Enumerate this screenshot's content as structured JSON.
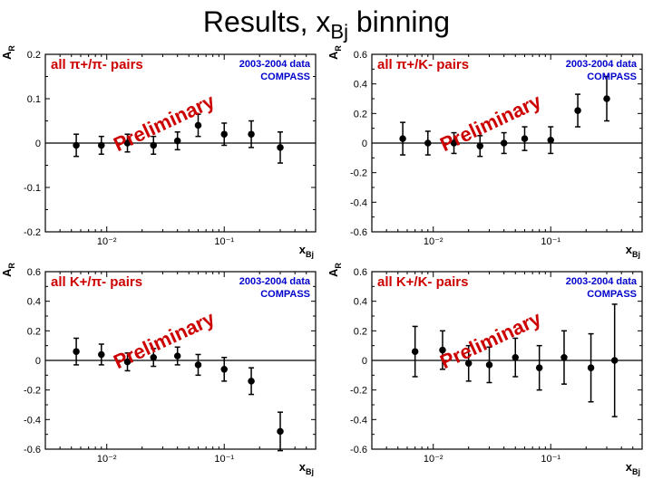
{
  "page_title_prefix": "Results, x",
  "page_title_sub": "Bj",
  "page_title_suffix": " binning",
  "common": {
    "ylabel": "A_RS",
    "xlabel_html": "x_Bj",
    "data_label_line1": "2003-2004 data",
    "data_label_line2": "COMPASS",
    "preliminary": "Preliminary",
    "preliminary_color": "#cc0000",
    "anno_color": "#0000cc",
    "axis_color": "#000000",
    "background": "#ffffff",
    "marker": "circle",
    "marker_radius": 3,
    "xscale": "log",
    "xlim": [
      0.003,
      0.6
    ],
    "xtick_majors": [
      0.01,
      0.1
    ],
    "xtick_labels": [
      "10⁻²",
      "10⁻¹"
    ],
    "xtick_minors": [
      0.003,
      0.004,
      0.005,
      0.006,
      0.007,
      0.008,
      0.009,
      0.02,
      0.03,
      0.04,
      0.05,
      0.06,
      0.07,
      0.08,
      0.09,
      0.2,
      0.3,
      0.4,
      0.5
    ]
  },
  "panels": [
    {
      "label": "all π+/π- pairs",
      "ylim": [
        -0.2,
        0.2
      ],
      "yticks": [
        -0.2,
        -0.1,
        0,
        0.1,
        0.2
      ],
      "ytick_labels": [
        "-0.2",
        "-0.1",
        "0",
        "0.1",
        "0.2"
      ],
      "points": [
        {
          "x": 0.0055,
          "y": -0.005,
          "err": 0.025
        },
        {
          "x": 0.009,
          "y": -0.005,
          "err": 0.02
        },
        {
          "x": 0.015,
          "y": 0.0,
          "err": 0.02
        },
        {
          "x": 0.025,
          "y": -0.005,
          "err": 0.02
        },
        {
          "x": 0.04,
          "y": 0.005,
          "err": 0.02
        },
        {
          "x": 0.06,
          "y": 0.04,
          "err": 0.025
        },
        {
          "x": 0.1,
          "y": 0.02,
          "err": 0.025
        },
        {
          "x": 0.17,
          "y": 0.02,
          "err": 0.03
        },
        {
          "x": 0.3,
          "y": -0.01,
          "err": 0.035
        }
      ]
    },
    {
      "label": "all π+/K- pairs",
      "ylim": [
        -0.6,
        0.6
      ],
      "yticks": [
        -0.6,
        -0.4,
        -0.2,
        0,
        0.2,
        0.4,
        0.6
      ],
      "ytick_labels": [
        "-0.6",
        "-0.4",
        "-0.2",
        "0",
        "0.2",
        "0.4",
        "0.6"
      ],
      "points": [
        {
          "x": 0.0055,
          "y": 0.03,
          "err": 0.11
        },
        {
          "x": 0.009,
          "y": 0.0,
          "err": 0.08
        },
        {
          "x": 0.015,
          "y": 0.0,
          "err": 0.07
        },
        {
          "x": 0.025,
          "y": -0.02,
          "err": 0.07
        },
        {
          "x": 0.04,
          "y": 0.0,
          "err": 0.07
        },
        {
          "x": 0.06,
          "y": 0.03,
          "err": 0.08
        },
        {
          "x": 0.1,
          "y": 0.02,
          "err": 0.09
        },
        {
          "x": 0.17,
          "y": 0.22,
          "err": 0.11
        },
        {
          "x": 0.3,
          "y": 0.3,
          "err": 0.15
        }
      ]
    },
    {
      "label": "all K+/π- pairs",
      "ylim": [
        -0.6,
        0.6
      ],
      "yticks": [
        -0.6,
        -0.4,
        -0.2,
        0,
        0.2,
        0.4,
        0.6
      ],
      "ytick_labels": [
        "-0.6",
        "-0.4",
        "-0.2",
        "0",
        "0.2",
        "0.4",
        "0.6"
      ],
      "points": [
        {
          "x": 0.0055,
          "y": 0.06,
          "err": 0.09
        },
        {
          "x": 0.009,
          "y": 0.04,
          "err": 0.07
        },
        {
          "x": 0.015,
          "y": -0.01,
          "err": 0.06
        },
        {
          "x": 0.025,
          "y": 0.02,
          "err": 0.06
        },
        {
          "x": 0.04,
          "y": 0.03,
          "err": 0.06
        },
        {
          "x": 0.06,
          "y": -0.03,
          "err": 0.07
        },
        {
          "x": 0.1,
          "y": -0.06,
          "err": 0.08
        },
        {
          "x": 0.17,
          "y": -0.14,
          "err": 0.09
        },
        {
          "x": 0.3,
          "y": -0.48,
          "err": 0.13
        }
      ]
    },
    {
      "label": "all K+/K- pairs",
      "ylim": [
        -0.6,
        0.6
      ],
      "yticks": [
        -0.6,
        -0.4,
        -0.2,
        0,
        0.2,
        0.4,
        0.6
      ],
      "ytick_labels": [
        "-0.6",
        "-0.4",
        "-0.2",
        "0",
        "0.2",
        "0.4",
        "0.6"
      ],
      "points": [
        {
          "x": 0.007,
          "y": 0.06,
          "err": 0.17
        },
        {
          "x": 0.012,
          "y": 0.07,
          "err": 0.13
        },
        {
          "x": 0.02,
          "y": -0.02,
          "err": 0.12
        },
        {
          "x": 0.03,
          "y": -0.03,
          "err": 0.12
        },
        {
          "x": 0.05,
          "y": 0.02,
          "err": 0.13
        },
        {
          "x": 0.08,
          "y": -0.05,
          "err": 0.15
        },
        {
          "x": 0.13,
          "y": 0.02,
          "err": 0.18
        },
        {
          "x": 0.22,
          "y": -0.05,
          "err": 0.23
        },
        {
          "x": 0.35,
          "y": 0.0,
          "err": 0.38
        }
      ]
    }
  ]
}
